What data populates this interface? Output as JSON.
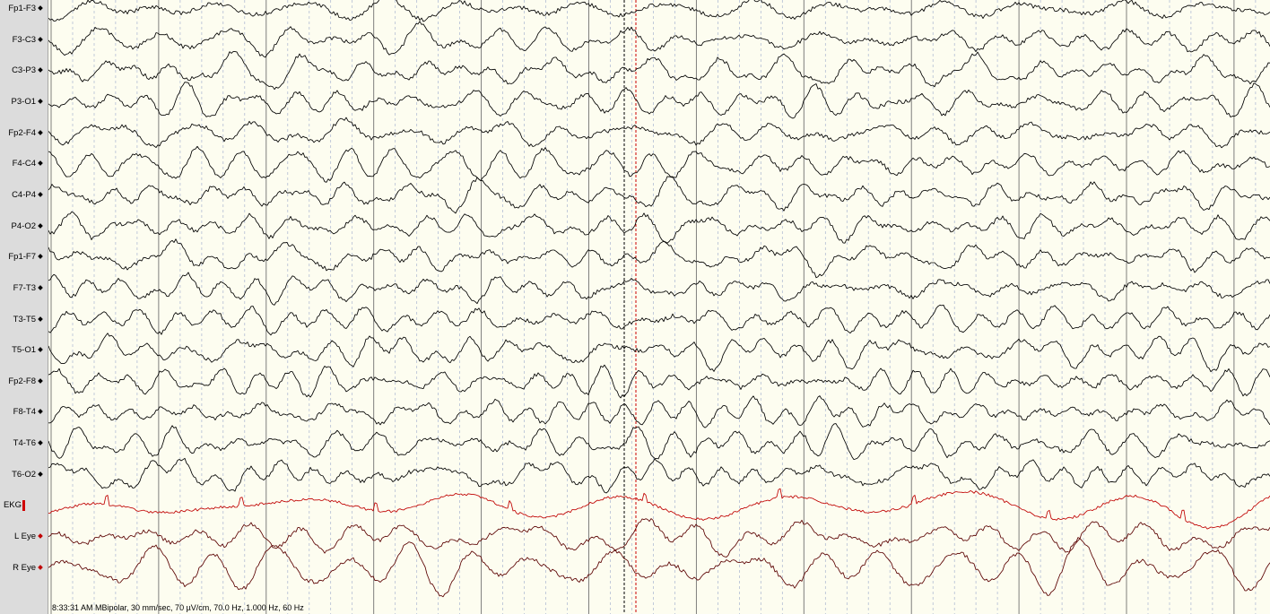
{
  "channels": [
    {
      "label": "Fp1-F3",
      "color": "#000000"
    },
    {
      "label": "F3-C3",
      "color": "#000000"
    },
    {
      "label": "C3-P3",
      "color": "#000000"
    },
    {
      "label": "P3-O1",
      "color": "#000000"
    },
    {
      "label": "Fp2-F4",
      "color": "#000000"
    },
    {
      "label": "F4-C4",
      "color": "#000000"
    },
    {
      "label": "C4-P4",
      "color": "#000000"
    },
    {
      "label": "P4-O2",
      "color": "#000000"
    },
    {
      "label": "Fp1-F7",
      "color": "#000000"
    },
    {
      "label": "F7-T3",
      "color": "#000000"
    },
    {
      "label": "T3-T5",
      "color": "#000000"
    },
    {
      "label": "T5-O1",
      "color": "#000000"
    },
    {
      "label": "Fp2-F8",
      "color": "#000000"
    },
    {
      "label": "F8-T4",
      "color": "#000000"
    },
    {
      "label": "T4-T6",
      "color": "#000000"
    },
    {
      "label": "T6-O2",
      "color": "#000000"
    },
    {
      "label": "EKG",
      "color": "#c00000"
    },
    {
      "label": "L Eye",
      "color": "#5a0000"
    },
    {
      "label": "R Eye",
      "color": "#5a0000"
    }
  ],
  "status": {
    "text": "8:33:31 AM MBipolar, 30 mm/sec, 70 µV/cm, 70.0 Hz, 1.000 Hz, 60 Hz"
  },
  "colors": {
    "background": "#fdfdf0",
    "second_gridline": "#707070",
    "minor_gridline": "#a8b4d0",
    "cursor": "#cc0000"
  }
}
